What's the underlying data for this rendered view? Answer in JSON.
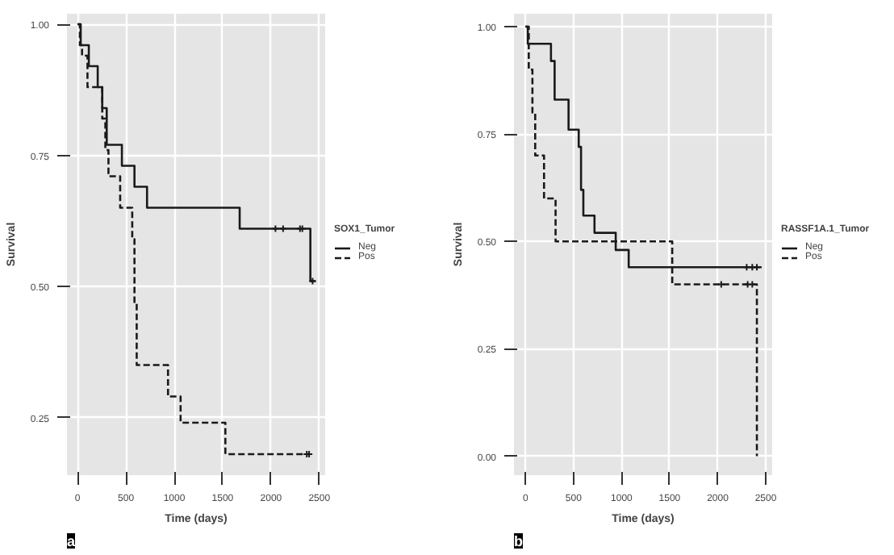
{
  "chart_data": [
    {
      "type": "step",
      "xlabel": "Time (days)",
      "ylabel": "Survival",
      "legend_title": "SOX1_Tumor",
      "legend": "right",
      "grid": true,
      "annotations": [
        "a"
      ],
      "xlim": [
        -110,
        2560
      ],
      "ylim": [
        0.14,
        1.02
      ],
      "xticks": [
        0,
        500,
        1000,
        1500,
        2000,
        2500
      ],
      "yticks": [
        {
          "value": 0.25,
          "label": "0.25"
        },
        {
          "value": 0.5,
          "label": "0.50"
        },
        {
          "value": 0.75,
          "label": "0.75"
        },
        {
          "value": 1.0,
          "label": "1.00"
        }
      ],
      "series": [
        {
          "name": "Neg",
          "color": "#1a1a1a",
          "line_style": "solid",
          "x": [
            0,
            32,
            116,
            208,
            255,
            301,
            458,
            588,
            718,
            1676,
            2407,
            2463
          ],
          "values": [
            1.0,
            0.96,
            0.92,
            0.88,
            0.84,
            0.77,
            0.73,
            0.69,
            0.65,
            0.61,
            0.51,
            0.51
          ]
        },
        {
          "name": "Pos",
          "color": "#1a1a1a",
          "line_style": "dashed",
          "x": [
            0,
            23,
            46,
            102,
            255,
            287,
            319,
            440,
            565,
            588,
            611,
            935,
            1065,
            1528,
            2394
          ],
          "values": [
            1.0,
            0.96,
            0.94,
            0.88,
            0.82,
            0.76,
            0.71,
            0.65,
            0.59,
            0.47,
            0.35,
            0.29,
            0.24,
            0.18,
            0.18
          ]
        },
        {
          "type": "scatter",
          "marker": "cross",
          "color": "#1a1a1a",
          "x": [
            2046,
            2125,
            2300,
            2324,
            2430
          ],
          "values": [
            0.61,
            0.61,
            0.61,
            0.61,
            0.51
          ]
        },
        {
          "type": "scatter",
          "marker": "cross",
          "color": "#1a1a1a",
          "x": [
            2370,
            2394
          ],
          "values": [
            0.18,
            0.18
          ]
        }
      ]
    },
    {
      "type": "step",
      "xlabel": "Time (days)",
      "ylabel": "Survival",
      "legend_title": "RASSF1A.1_Tumor",
      "legend": "right",
      "grid": true,
      "annotations": [
        "b"
      ],
      "xlim": [
        -120,
        2567
      ],
      "ylim": [
        -0.044,
        1.03
      ],
      "xticks": [
        0,
        500,
        1000,
        1500,
        2000,
        2500
      ],
      "yticks": [
        {
          "value": 0.0,
          "label": "0.00"
        },
        {
          "value": 0.25,
          "label": "0.25"
        },
        {
          "value": 0.5,
          "label": "0.50"
        },
        {
          "value": 0.75,
          "label": "0.75"
        },
        {
          "value": 1.0,
          "label": "1.00"
        }
      ],
      "series": [
        {
          "name": "Neg",
          "color": "#1a1a1a",
          "line_style": "solid",
          "x": [
            0,
            24,
            265,
            303,
            448,
            554,
            578,
            602,
            718,
            939,
            1074,
            2457
          ],
          "values": [
            1.0,
            0.96,
            0.92,
            0.83,
            0.76,
            0.72,
            0.62,
            0.56,
            0.52,
            0.48,
            0.44,
            0.44
          ]
        },
        {
          "name": "Pos",
          "color": "#1a1a1a",
          "line_style": "dashed",
          "x": [
            0,
            34,
            72,
            101,
            193,
            313,
            1527,
            2408
          ],
          "values": [
            1.0,
            0.9,
            0.8,
            0.7,
            0.6,
            0.5,
            0.4,
            0.0
          ]
        },
        {
          "type": "scatter",
          "marker": "cross",
          "color": "#1a1a1a",
          "x": [
            2302,
            2360,
            2408
          ],
          "values": [
            0.44,
            0.44,
            0.44
          ]
        },
        {
          "type": "scatter",
          "marker": "cross",
          "color": "#1a1a1a",
          "x": [
            2037,
            2312,
            2360
          ],
          "values": [
            0.4,
            0.4,
            0.4
          ]
        }
      ]
    }
  ]
}
